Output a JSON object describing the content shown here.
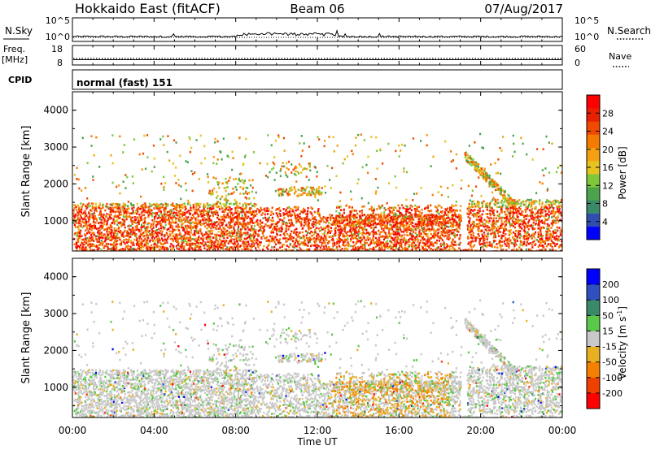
{
  "header": {
    "title": "Hokkaido East (fitACF)",
    "beam": "Beam 06",
    "date": "07/Aug/2017"
  },
  "chart_data": [
    {
      "type": "line",
      "name": "noise-panel",
      "left_label": "N.Sky",
      "right_label": "N.Search",
      "left_ticks": [
        "10^5",
        "10^0"
      ],
      "right_ticks": [
        "10^5",
        "10^0"
      ]
    },
    {
      "type": "line",
      "name": "frequency-panel",
      "left_label": "Freq.",
      "left_unit": "[MHz]",
      "right_label": "Nave",
      "left_ticks": [
        18,
        8
      ],
      "right_ticks": [
        60,
        0
      ],
      "frequency_mhz": 10.7,
      "nave": 20
    },
    {
      "type": "table",
      "name": "cpid-panel",
      "label": "CPID",
      "value": "normal (fast) 151"
    },
    {
      "type": "heatmap",
      "name": "power-panel",
      "ylabel": "Slant Range [km]",
      "xlabel": "",
      "xlim": [
        0,
        24
      ],
      "ylim": [
        180,
        4500
      ],
      "y_ticks": [
        1000,
        2000,
        3000,
        4000
      ],
      "colorbar": {
        "label": "Power [dB]",
        "ticks": [
          4,
          8,
          12,
          16,
          20,
          24,
          28
        ],
        "range": [
          0,
          32
        ],
        "colors": [
          "#0000ff",
          "#2f4fb0",
          "#3a8a6a",
          "#4da34d",
          "#7ec83a",
          "#e6c31e",
          "#f5a010",
          "#f57a00",
          "#f04a00",
          "#e82000",
          "#ff0000"
        ]
      }
    },
    {
      "type": "heatmap",
      "name": "velocity-panel",
      "ylabel": "Slant Range [km]",
      "xlabel": "Time UT",
      "xlim": [
        0,
        24
      ],
      "ylim": [
        180,
        4500
      ],
      "y_ticks": [
        1000,
        2000,
        3000,
        4000
      ],
      "x_tick_labels": [
        "00:00",
        "04:00",
        "08:00",
        "12:00",
        "16:00",
        "20:00",
        "00:00"
      ],
      "colorbar": {
        "label": "Velocity [m s",
        "label_sup": "-1",
        "label_close": "]",
        "ticks": [
          200,
          100,
          50,
          15,
          -15,
          -50,
          -100,
          -200
        ],
        "colors": [
          "#0000ff",
          "#3050c0",
          "#3a8a6a",
          "#5ac84a",
          "#c8c8c8",
          "#e8b020",
          "#f58000",
          "#f04000",
          "#ff0000"
        ]
      }
    }
  ]
}
